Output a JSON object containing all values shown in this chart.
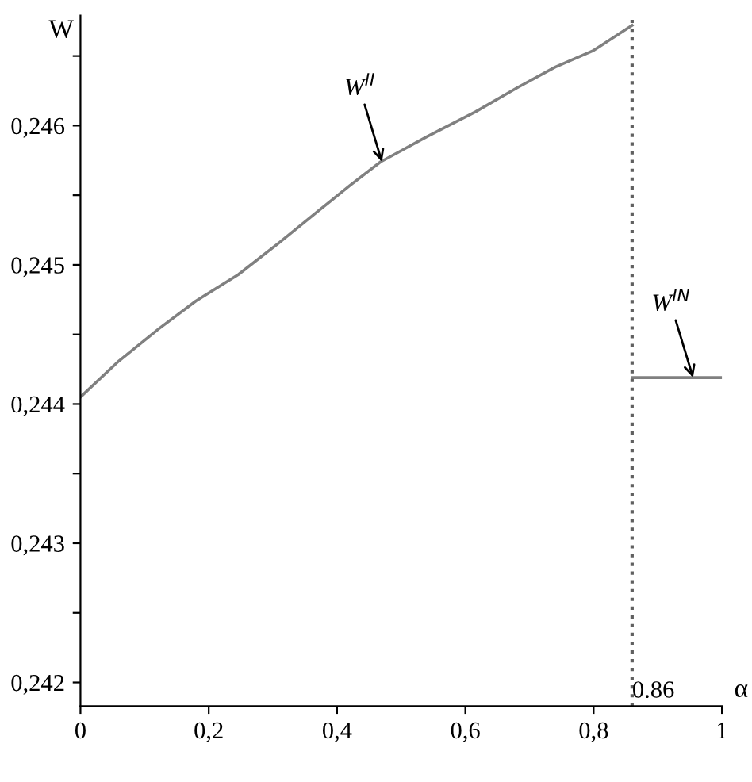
{
  "chart_data": {
    "type": "line",
    "xlabel": "α",
    "ylabel": "W",
    "series": [
      {
        "color": "#808080",
        "x": [
          0,
          0.06,
          0.122,
          0.18,
          0.246,
          0.31,
          0.369,
          0.42,
          0.468,
          0.54,
          0.616,
          0.68,
          0.74,
          0.8,
          0.86
        ],
        "values": [
          0.24405,
          0.24431,
          0.24454,
          0.24474,
          0.24493,
          0.24516,
          0.24538,
          0.24557,
          0.24574,
          0.24592,
          0.2461,
          0.24627,
          0.24642,
          0.24654,
          0.24672
        ]
      },
      {
        "color": "#808080",
        "x": [
          0.86,
          1
        ],
        "values": [
          0.24419,
          0.24419
        ]
      }
    ],
    "annotations": [
      {
        "text": "W$^{II}$",
        "x": 0.47,
        "y": 0.24574
      },
      {
        "text": "W$^{IN}$",
        "x": 0.955,
        "y": 0.24419
      }
    ],
    "ref_lines": [
      {
        "axis": "x",
        "value": 0.86,
        "label": "0.86",
        "line_style": "dotted",
        "color": "#606060"
      }
    ],
    "xlim": [
      0,
      1
    ],
    "ylim": [
      0.24183,
      0.24679
    ],
    "xticks": [
      0,
      {
        "value": 0.2,
        "label": "0,2"
      },
      {
        "value": 0.4,
        "label": "0,4"
      },
      {
        "value": 0.6,
        "label": "0,6"
      },
      {
        "value": 0.8,
        "label": "0,8"
      },
      1
    ],
    "yticks": [
      {
        "value": 0.242,
        "label": "0,242"
      },
      {
        "value": 0.2425,
        "label": null
      },
      {
        "value": 0.243,
        "label": "0,243"
      },
      {
        "value": 0.2435,
        "label": null
      },
      {
        "value": 0.244,
        "label": "0,244"
      },
      {
        "value": 0.2445,
        "label": null
      },
      {
        "value": 0.245,
        "label": "0,245"
      },
      {
        "value": 0.2455,
        "label": null
      },
      {
        "value": 0.246,
        "label": "0,246"
      },
      {
        "value": 0.2465,
        "label": null
      }
    ],
    "grid": false,
    "legend": false,
    "marker": "none",
    "line_style": "solid"
  }
}
